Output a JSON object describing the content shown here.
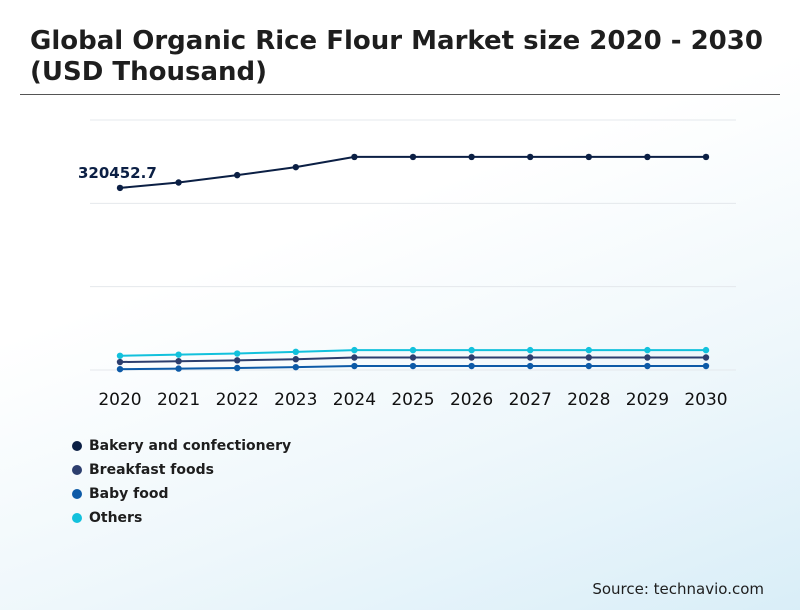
{
  "header": {
    "title": "Global Organic Rice Flour Market size 2020 - 2030 (USD Thousand)"
  },
  "source": "Source: technavio.com",
  "chart_data": {
    "type": "line",
    "title": "Global Organic Rice Flour Market size 2020 - 2030 (USD Thousand)",
    "xlabel": "",
    "ylabel": "",
    "categories": [
      "2020",
      "2021",
      "2022",
      "2023",
      "2024",
      "2025",
      "2026",
      "2027",
      "2028",
      "2029",
      "2030"
    ],
    "ylim": [
      0,
      440000
    ],
    "grid": true,
    "legend_position": "bottom-left",
    "annotations": [
      {
        "series": "Bakery and confectionery",
        "x": "2020",
        "label": "320452.7"
      }
    ],
    "series": [
      {
        "name": "Bakery and confectionery",
        "color": "#0b1f44",
        "values": [
          320452.7,
          330000,
          343000,
          357000,
          375000,
          375000,
          375000,
          375000,
          375000,
          375000,
          375000
        ]
      },
      {
        "name": "Breakfast foods",
        "color": "#2c3e6e",
        "values": [
          14000,
          15500,
          17000,
          19000,
          22000,
          22000,
          22000,
          22000,
          22000,
          22000,
          22000
        ]
      },
      {
        "name": "Baby food",
        "color": "#0d5aa7",
        "values": [
          1500,
          2500,
          3500,
          5000,
          7000,
          7000,
          7000,
          7000,
          7000,
          7000,
          7000
        ]
      },
      {
        "name": "Others",
        "color": "#12c1dc",
        "values": [
          25000,
          27000,
          29000,
          32000,
          35000,
          35000,
          35000,
          35000,
          35000,
          35000,
          35000
        ]
      }
    ]
  }
}
